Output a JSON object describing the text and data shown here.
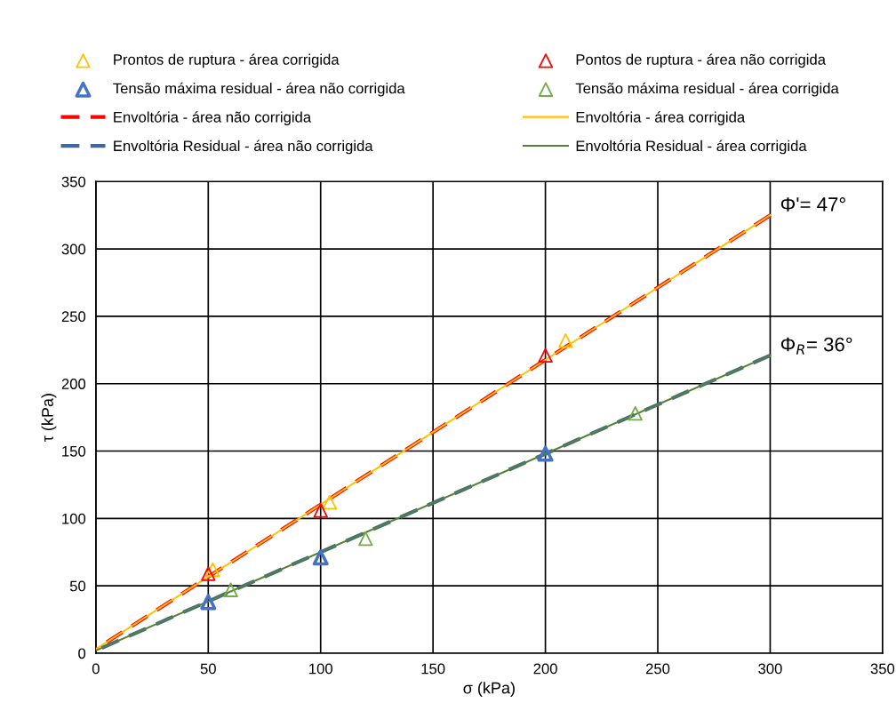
{
  "chart_data": {
    "type": "scatter",
    "xlabel": "σ (kPa)",
    "ylabel": "τ (kPa)",
    "xlim": [
      0,
      350
    ],
    "ylim": [
      0,
      350
    ],
    "xticks": [
      0,
      50,
      100,
      150,
      200,
      250,
      300,
      350
    ],
    "yticks": [
      0,
      50,
      100,
      150,
      200,
      250,
      300,
      350
    ],
    "grid": true,
    "legend": "top",
    "series": [
      {
        "name": "Prontos de ruptura - área corrigida",
        "color": "#ffc000",
        "marker": "triangle",
        "x": [
          52,
          104,
          209
        ],
        "values": [
          62,
          112,
          232
        ]
      },
      {
        "name": "Pontos de ruptura - área não corrigida",
        "color": "#ff0000",
        "marker": "triangle",
        "x": [
          50,
          100,
          200
        ],
        "values": [
          59,
          106,
          221
        ]
      },
      {
        "name": "Tensão máxima residual - área não corrigida",
        "color": "#4472c4",
        "marker": "triangle",
        "x": [
          50,
          100,
          200
        ],
        "values": [
          38,
          71,
          148
        ]
      },
      {
        "name": "Tensão máxima residual - área corrigida",
        "color": "#70ad47",
        "marker": "triangle",
        "x": [
          60,
          120,
          240
        ],
        "values": [
          47,
          85,
          178
        ]
      },
      {
        "name": "Envoltória - área não corrigida",
        "type": "line",
        "line_style": "dashed",
        "color": "#ff0000",
        "x": [
          0,
          300
        ],
        "values": [
          3,
          325
        ]
      },
      {
        "name": "Envoltória - área corrigida",
        "type": "line",
        "line_style": "solid",
        "color": "#ffc000",
        "x": [
          0,
          300
        ],
        "values": [
          3,
          325
        ]
      },
      {
        "name": "Envoltória Residual - área não corrigida",
        "type": "line",
        "line_style": "dashed",
        "color": "#44679a",
        "x": [
          0,
          300
        ],
        "values": [
          2,
          221
        ]
      },
      {
        "name": "Envoltória Residual - área corrigida",
        "type": "line",
        "line_style": "solid",
        "color": "#548235",
        "x": [
          0,
          300
        ],
        "values": [
          2,
          221
        ]
      }
    ],
    "annotations": [
      {
        "text": "Φ'= 47°",
        "x": 300,
        "y": 325
      },
      {
        "text": "Φ$_{R}$= 36°",
        "x": 300,
        "y": 221
      }
    ]
  }
}
